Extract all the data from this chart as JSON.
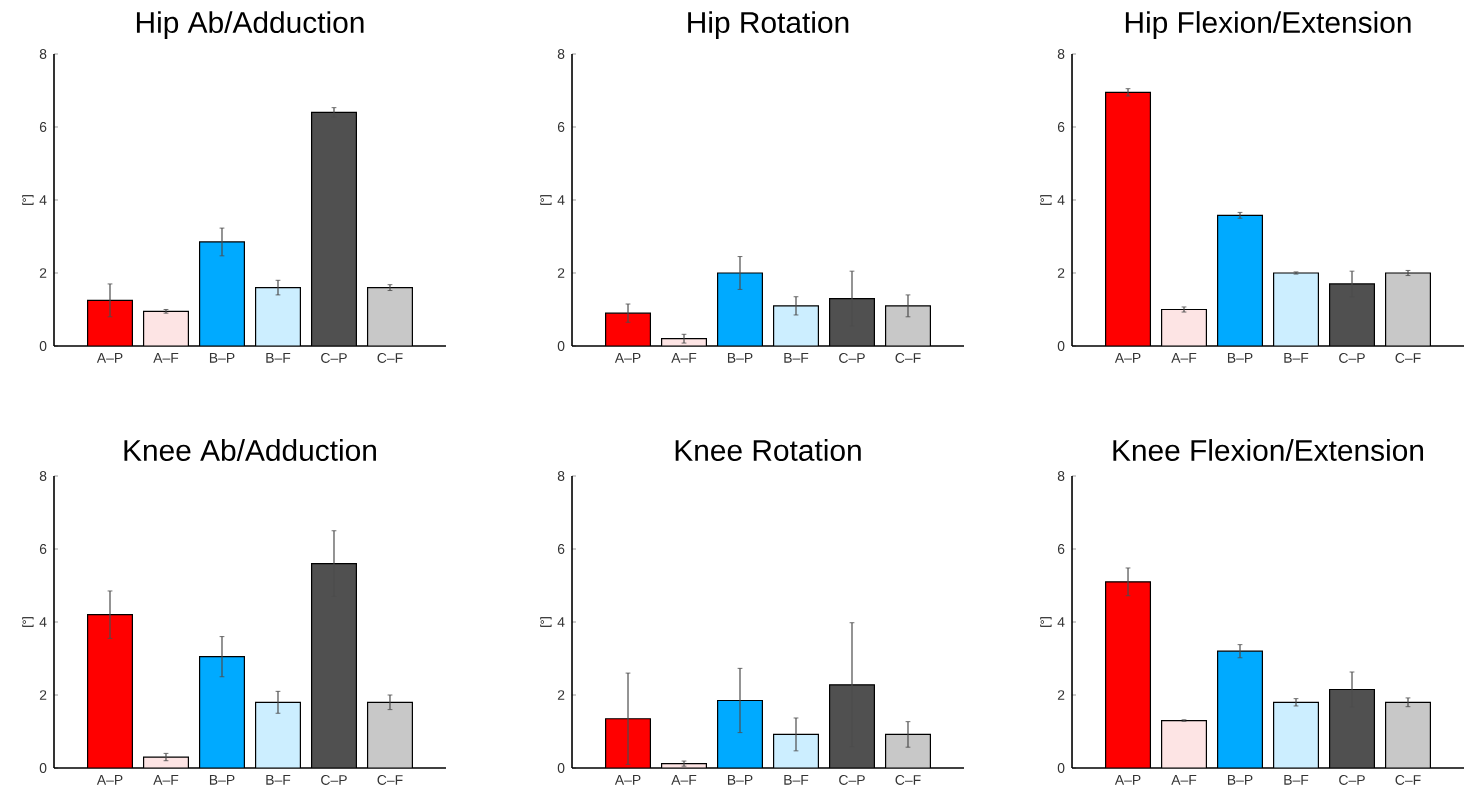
{
  "chart_data": [
    {
      "type": "bar",
      "title": "Hip Ab/Adduction",
      "ylabel": "[°]",
      "categories": [
        "A–P",
        "A–F",
        "B–P",
        "B–F",
        "C–P",
        "C–F"
      ],
      "values": [
        1.25,
        0.95,
        2.85,
        1.6,
        6.4,
        1.6
      ],
      "errors": [
        0.45,
        0.05,
        0.38,
        0.2,
        0.13,
        0.08
      ],
      "colors": [
        "#ff0000",
        "#fde4e4",
        "#00aaff",
        "#cceeff",
        "#505050",
        "#c8c8c8"
      ],
      "ylim": [
        0,
        8
      ],
      "yticks": [
        0,
        2,
        4,
        6,
        8
      ]
    },
    {
      "type": "bar",
      "title": "Hip Rotation",
      "ylabel": "[°]",
      "categories": [
        "A–P",
        "A–F",
        "B–P",
        "B–F",
        "C–P",
        "C–F"
      ],
      "values": [
        0.9,
        0.2,
        2.0,
        1.1,
        1.3,
        1.1
      ],
      "errors": [
        0.25,
        0.12,
        0.45,
        0.25,
        0.75,
        0.3
      ],
      "colors": [
        "#ff0000",
        "#fde4e4",
        "#00aaff",
        "#cceeff",
        "#505050",
        "#c8c8c8"
      ],
      "ylim": [
        0,
        8
      ],
      "yticks": [
        0,
        2,
        4,
        6,
        8
      ]
    },
    {
      "type": "bar",
      "title": "Hip Flexion/Extension",
      "ylabel": "[°]",
      "categories": [
        "A–P",
        "A–F",
        "B–P",
        "B–F",
        "C–P",
        "C–F"
      ],
      "values": [
        6.95,
        1.0,
        3.58,
        2.0,
        1.7,
        2.0
      ],
      "errors": [
        0.1,
        0.07,
        0.08,
        0.03,
        0.35,
        0.07
      ],
      "colors": [
        "#ff0000",
        "#fde4e4",
        "#00aaff",
        "#cceeff",
        "#505050",
        "#c8c8c8"
      ],
      "ylim": [
        0,
        8
      ],
      "yticks": [
        0,
        2,
        4,
        6,
        8
      ]
    },
    {
      "type": "bar",
      "title": "Knee Ab/Adduction",
      "ylabel": "[°]",
      "categories": [
        "A–P",
        "A–F",
        "B–P",
        "B–F",
        "C–P",
        "C–F"
      ],
      "values": [
        4.2,
        0.3,
        3.05,
        1.8,
        5.6,
        1.8
      ],
      "errors": [
        0.65,
        0.1,
        0.55,
        0.3,
        0.9,
        0.2
      ],
      "colors": [
        "#ff0000",
        "#fde4e4",
        "#00aaff",
        "#cceeff",
        "#505050",
        "#c8c8c8"
      ],
      "ylim": [
        0,
        8
      ],
      "yticks": [
        0,
        2,
        4,
        6,
        8
      ]
    },
    {
      "type": "bar",
      "title": "Knee Rotation",
      "ylabel": "[°]",
      "categories": [
        "A–P",
        "A–F",
        "B–P",
        "B–F",
        "C–P",
        "C–F"
      ],
      "values": [
        1.35,
        0.12,
        1.85,
        0.92,
        2.28,
        0.92
      ],
      "errors": [
        1.25,
        0.07,
        0.88,
        0.45,
        1.7,
        0.35
      ],
      "colors": [
        "#ff0000",
        "#fde4e4",
        "#00aaff",
        "#cceeff",
        "#505050",
        "#c8c8c8"
      ],
      "ylim": [
        0,
        8
      ],
      "yticks": [
        0,
        2,
        4,
        6,
        8
      ]
    },
    {
      "type": "bar",
      "title": "Knee Flexion/Extension",
      "ylabel": "[°]",
      "categories": [
        "A–P",
        "A–F",
        "B–P",
        "B–F",
        "C–P",
        "C–F"
      ],
      "values": [
        5.1,
        1.3,
        3.2,
        1.8,
        2.15,
        1.8
      ],
      "errors": [
        0.38,
        0.02,
        0.18,
        0.1,
        0.48,
        0.12
      ],
      "colors": [
        "#ff0000",
        "#fde4e4",
        "#00aaff",
        "#cceeff",
        "#505050",
        "#c8c8c8"
      ],
      "ylim": [
        0,
        8
      ],
      "yticks": [
        0,
        2,
        4,
        6,
        8
      ]
    }
  ]
}
